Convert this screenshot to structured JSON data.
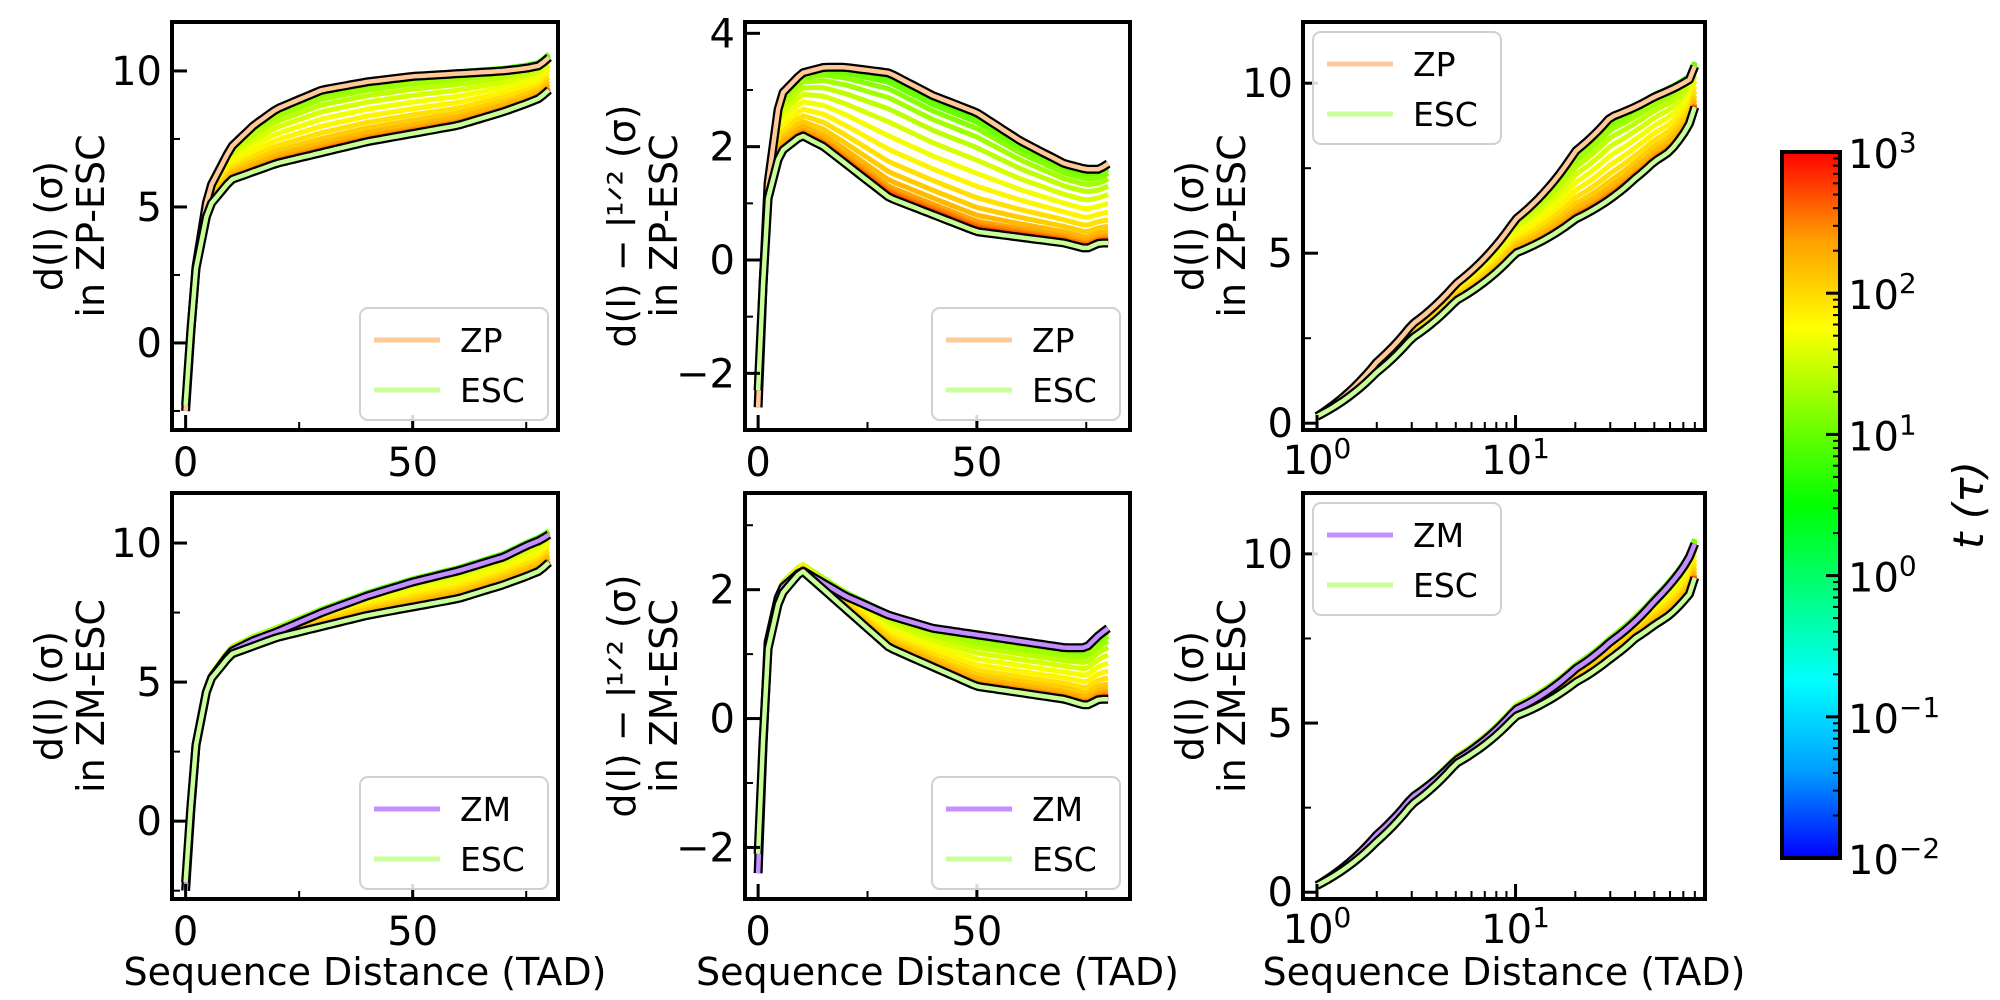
{
  "colors": {
    "zp": "#ffc999",
    "zm": "#c48eff",
    "esc": "#c9ff99",
    "colormap": [
      "#0000ff",
      "#00a0ff",
      "#00ffff",
      "#00ff7f",
      "#00ff00",
      "#7fff00",
      "#ffff00",
      "#ffa000",
      "#ff0000"
    ],
    "final_outline": "#000000"
  },
  "colorbar": {
    "label": "t (τ)",
    "ticks": [
      {
        "base": "10",
        "exp": "3",
        "value": 1000
      },
      {
        "base": "10",
        "exp": "2",
        "value": 100
      },
      {
        "base": "10",
        "exp": "1",
        "value": 10
      },
      {
        "base": "10",
        "exp": "0",
        "value": 1
      },
      {
        "base": "10",
        "exp": "−1",
        "value": 0.1
      },
      {
        "base": "10",
        "exp": "−2",
        "value": 0.01
      }
    ],
    "range": [
      0.01,
      1000
    ],
    "scale": "log"
  },
  "chart_data": [
    {
      "id": "top-left",
      "type": "line",
      "xscale": "linear",
      "xlabel": "",
      "ylabel_lines": [
        "d(l) (σ)",
        "in ZP-ESC"
      ],
      "xlim": [
        -3,
        82
      ],
      "ylim": [
        -3.2,
        11.8
      ],
      "xticks": [
        {
          "v": 0,
          "label": "0"
        },
        {
          "v": 50,
          "label": "50"
        }
      ],
      "yticks": [
        {
          "v": 0,
          "label": "0"
        },
        {
          "v": 5,
          "label": "5"
        },
        {
          "v": 10,
          "label": "10"
        }
      ],
      "legend": {
        "position": "lower right",
        "entries": [
          {
            "label": "ZP",
            "color_key": "zp"
          },
          {
            "label": "ESC",
            "color_key": "esc"
          }
        ]
      },
      "series": [
        {
          "name": "ZP",
          "x": [
            0,
            2,
            5,
            10,
            15,
            20,
            30,
            40,
            50,
            60,
            70,
            75,
            78,
            80
          ],
          "y": [
            -2.5,
            2.5,
            5.6,
            7.2,
            8.0,
            8.6,
            9.3,
            9.6,
            9.8,
            9.9,
            10.0,
            10.1,
            10.2,
            10.5
          ]
        },
        {
          "name": "ESC",
          "x": [
            0,
            2,
            5,
            10,
            15,
            20,
            30,
            40,
            50,
            60,
            70,
            75,
            78,
            80
          ],
          "y": [
            -2.3,
            2.5,
            5.0,
            6.0,
            6.3,
            6.6,
            7.0,
            7.4,
            7.7,
            8.0,
            8.5,
            8.8,
            9.0,
            9.3
          ]
        }
      ]
    },
    {
      "id": "top-middle",
      "type": "line",
      "xscale": "linear",
      "xlabel": "",
      "ylabel_lines": [
        "d(l) − l¹ᐟ² (σ)",
        "in ZP-ESC"
      ],
      "xlim": [
        -3,
        85
      ],
      "ylim": [
        -3.0,
        4.2
      ],
      "xticks": [
        {
          "v": 0,
          "label": "0"
        },
        {
          "v": 50,
          "label": "50"
        }
      ],
      "yticks": [
        {
          "v": -2,
          "label": "−2"
        },
        {
          "v": 0,
          "label": "0"
        },
        {
          "v": 2,
          "label": "2"
        },
        {
          "v": 4,
          "label": "4"
        }
      ],
      "legend": {
        "position": "lower right",
        "entries": [
          {
            "label": "ZP",
            "color_key": "zp"
          },
          {
            "label": "ESC",
            "color_key": "esc"
          }
        ]
      },
      "series": [
        {
          "name": "ZP",
          "x": [
            0,
            2,
            5,
            10,
            15,
            20,
            30,
            40,
            50,
            60,
            70,
            75,
            78,
            80
          ],
          "y": [
            -2.6,
            1.2,
            2.9,
            3.3,
            3.4,
            3.4,
            3.3,
            2.9,
            2.6,
            2.1,
            1.7,
            1.6,
            1.6,
            1.7
          ]
        },
        {
          "name": "ESC",
          "x": [
            0,
            2,
            5,
            10,
            15,
            20,
            30,
            40,
            50,
            60,
            70,
            75,
            78,
            80
          ],
          "y": [
            -2.3,
            1.0,
            1.9,
            2.2,
            2.0,
            1.7,
            1.1,
            0.8,
            0.5,
            0.4,
            0.3,
            0.2,
            0.3,
            0.3
          ]
        }
      ]
    },
    {
      "id": "top-right",
      "type": "line",
      "xscale": "log",
      "xlabel": "",
      "ylabel_lines": [
        "d(l) (σ)",
        "in ZP-ESC"
      ],
      "xlim": [
        0.85,
        90
      ],
      "ylim": [
        -0.2,
        11.8
      ],
      "xticks": [
        {
          "v": 1,
          "base": "10",
          "exp": "0"
        },
        {
          "v": 10,
          "base": "10",
          "exp": "1"
        }
      ],
      "yticks": [
        {
          "v": 0,
          "label": "0"
        },
        {
          "v": 5,
          "label": "5"
        },
        {
          "v": 10,
          "label": "10"
        }
      ],
      "legend": {
        "position": "upper left",
        "entries": [
          {
            "label": "ZP",
            "color_key": "zp"
          },
          {
            "label": "ESC",
            "color_key": "esc"
          }
        ]
      },
      "series": [
        {
          "name": "ZP",
          "x": [
            1,
            2,
            3,
            5,
            10,
            20,
            30,
            40,
            50,
            60,
            70,
            75,
            78,
            80
          ],
          "y": [
            0.2,
            1.8,
            2.9,
            4.1,
            6.0,
            8.0,
            9.0,
            9.3,
            9.6,
            9.8,
            10.0,
            10.1,
            10.2,
            10.5
          ]
        },
        {
          "name": "ESC",
          "x": [
            1,
            2,
            3,
            5,
            10,
            20,
            30,
            40,
            50,
            60,
            70,
            75,
            78,
            80
          ],
          "y": [
            0.2,
            1.5,
            2.5,
            3.6,
            5.0,
            6.0,
            6.6,
            7.2,
            7.7,
            8.0,
            8.5,
            8.8,
            9.0,
            9.3
          ]
        }
      ]
    },
    {
      "id": "bottom-left",
      "type": "line",
      "xscale": "linear",
      "xlabel": "Sequence Distance (TAD)",
      "ylabel_lines": [
        "d(l) (σ)",
        "in ZM-ESC"
      ],
      "xlim": [
        -3,
        82
      ],
      "ylim": [
        -2.8,
        11.8
      ],
      "xticks": [
        {
          "v": 0,
          "label": "0"
        },
        {
          "v": 50,
          "label": "50"
        }
      ],
      "yticks": [
        {
          "v": 0,
          "label": "0"
        },
        {
          "v": 5,
          "label": "5"
        },
        {
          "v": 10,
          "label": "10"
        }
      ],
      "legend": {
        "position": "lower right",
        "entries": [
          {
            "label": "ZM",
            "color_key": "zm"
          },
          {
            "label": "ESC",
            "color_key": "esc"
          }
        ]
      },
      "series": [
        {
          "name": "ZM",
          "x": [
            0,
            2,
            5,
            10,
            15,
            20,
            30,
            40,
            50,
            60,
            70,
            75,
            78,
            80
          ],
          "y": [
            -2.5,
            2.5,
            5.0,
            6.1,
            6.5,
            6.8,
            7.5,
            8.1,
            8.6,
            9.0,
            9.5,
            9.9,
            10.1,
            10.3
          ]
        },
        {
          "name": "ESC",
          "x": [
            0,
            2,
            5,
            10,
            15,
            20,
            30,
            40,
            50,
            60,
            70,
            75,
            78,
            80
          ],
          "y": [
            -2.2,
            2.5,
            5.0,
            6.0,
            6.3,
            6.6,
            7.0,
            7.4,
            7.7,
            8.0,
            8.5,
            8.8,
            9.0,
            9.3
          ]
        }
      ]
    },
    {
      "id": "bottom-middle",
      "type": "line",
      "xscale": "linear",
      "xlabel": "Sequence Distance (TAD)",
      "ylabel_lines": [
        "d(l) − l¹ᐟ² (σ)",
        "in ZM-ESC"
      ],
      "xlim": [
        -3,
        85
      ],
      "ylim": [
        -2.8,
        3.5
      ],
      "xticks": [
        {
          "v": 0,
          "label": "0"
        },
        {
          "v": 50,
          "label": "50"
        }
      ],
      "yticks": [
        {
          "v": -2,
          "label": "−2"
        },
        {
          "v": 0,
          "label": "0"
        },
        {
          "v": 2,
          "label": "2"
        }
      ],
      "legend": {
        "position": "lower right",
        "entries": [
          {
            "label": "ZM",
            "color_key": "zm"
          },
          {
            "label": "ESC",
            "color_key": "esc"
          }
        ]
      },
      "series": [
        {
          "name": "ZM",
          "x": [
            0,
            2,
            5,
            10,
            15,
            20,
            30,
            40,
            50,
            60,
            70,
            75,
            78,
            80
          ],
          "y": [
            -2.4,
            1.1,
            2.0,
            2.3,
            2.1,
            1.9,
            1.6,
            1.4,
            1.3,
            1.2,
            1.1,
            1.1,
            1.3,
            1.4
          ]
        },
        {
          "name": "ESC",
          "x": [
            0,
            2,
            5,
            10,
            15,
            20,
            30,
            40,
            50,
            60,
            70,
            75,
            78,
            80
          ],
          "y": [
            -2.1,
            1.0,
            1.9,
            2.3,
            2.0,
            1.7,
            1.1,
            0.8,
            0.5,
            0.4,
            0.3,
            0.2,
            0.3,
            0.3
          ]
        }
      ]
    },
    {
      "id": "bottom-right",
      "type": "line",
      "xscale": "log",
      "xlabel": "Sequence Distance (TAD)",
      "ylabel_lines": [
        "d(l) (σ)",
        "in ZM-ESC"
      ],
      "xlim": [
        0.85,
        90
      ],
      "ylim": [
        -0.2,
        11.8
      ],
      "xticks": [
        {
          "v": 1,
          "base": "10",
          "exp": "0"
        },
        {
          "v": 10,
          "base": "10",
          "exp": "1"
        }
      ],
      "yticks": [
        {
          "v": 0,
          "label": "0"
        },
        {
          "v": 5,
          "label": "5"
        },
        {
          "v": 10,
          "label": "10"
        }
      ],
      "legend": {
        "position": "upper left",
        "entries": [
          {
            "label": "ZM",
            "color_key": "zm"
          },
          {
            "label": "ESC",
            "color_key": "esc"
          }
        ]
      },
      "series": [
        {
          "name": "ZM",
          "x": [
            1,
            2,
            3,
            5,
            10,
            20,
            30,
            40,
            50,
            60,
            70,
            75,
            78,
            80
          ],
          "y": [
            0.2,
            1.7,
            2.8,
            3.9,
            5.4,
            6.6,
            7.4,
            8.0,
            8.6,
            9.1,
            9.6,
            9.9,
            10.1,
            10.3
          ]
        },
        {
          "name": "ESC",
          "x": [
            1,
            2,
            3,
            5,
            10,
            20,
            30,
            40,
            50,
            60,
            70,
            75,
            78,
            80
          ],
          "y": [
            0.2,
            1.5,
            2.6,
            3.8,
            5.2,
            6.2,
            6.9,
            7.5,
            7.9,
            8.2,
            8.6,
            8.8,
            9.0,
            9.3
          ]
        }
      ]
    }
  ]
}
